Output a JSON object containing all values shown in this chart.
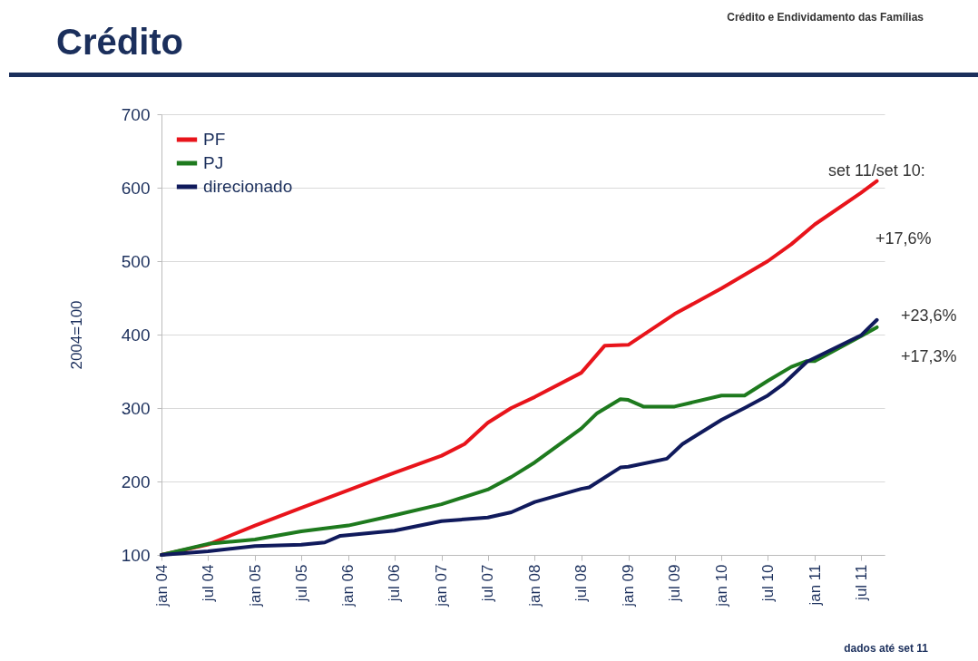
{
  "chart_data": {
    "type": "line",
    "title": "Crédito",
    "subtitle": "Crédito e Endividamento das Famílias",
    "ylabel": "2004=100",
    "series": [
      {
        "name": "PF",
        "color": "#e8141b",
        "x": [
          "2004-01",
          "2004-07",
          "2005-01",
          "2005-07",
          "2006-01",
          "2006-07",
          "2007-01",
          "2007-04",
          "2007-07",
          "2007-10",
          "2008-01",
          "2008-07",
          "2008-10",
          "2009-01",
          "2009-07",
          "2010-01",
          "2010-07",
          "2010-10",
          "2011-01",
          "2011-07",
          "2011-09"
        ],
        "values": [
          100,
          114,
          140,
          164,
          188,
          212,
          235,
          251,
          280,
          300,
          315,
          348,
          385,
          386,
          428,
          463,
          500,
          523,
          550,
          593,
          609
        ]
      },
      {
        "name": "PJ",
        "color": "#1e7a1e",
        "x": [
          "2004-01",
          "2004-07",
          "2005-01",
          "2005-07",
          "2006-01",
          "2006-07",
          "2007-01",
          "2007-07",
          "2007-10",
          "2008-01",
          "2008-07",
          "2008-09",
          "2008-12",
          "2009-01",
          "2009-03",
          "2009-07",
          "2010-01",
          "2010-04",
          "2010-07",
          "2010-10",
          "2010-12",
          "2011-01",
          "2011-07",
          "2011-09"
        ],
        "values": [
          100,
          115,
          121,
          132,
          140,
          154,
          169,
          189,
          206,
          226,
          272,
          293,
          312,
          311,
          302,
          302,
          317,
          317,
          337,
          356,
          364,
          364,
          398,
          410
        ]
      },
      {
        "name": "direcionado",
        "color": "#101a5c",
        "x": [
          "2004-01",
          "2004-07",
          "2005-01",
          "2005-07",
          "2005-10",
          "2005-12",
          "2006-07",
          "2007-01",
          "2007-07",
          "2007-10",
          "2008-01",
          "2008-07",
          "2008-08",
          "2008-12",
          "2009-01",
          "2009-06",
          "2009-08",
          "2010-01",
          "2010-04",
          "2010-07",
          "2010-09",
          "2010-12",
          "2011-07",
          "2011-09"
        ],
        "values": [
          100,
          105,
          112,
          114,
          117,
          126,
          133,
          146,
          151,
          158,
          172,
          190,
          192,
          219,
          220,
          231,
          251,
          284,
          300,
          317,
          333,
          363,
          399,
          420
        ]
      }
    ],
    "xlim": [
      "2004-01",
      "2011-10"
    ],
    "xticks": [
      {
        "value": "2004-01",
        "label": "jan 04"
      },
      {
        "value": "2004-07",
        "label": "jul 04"
      },
      {
        "value": "2005-01",
        "label": "jan 05"
      },
      {
        "value": "2005-07",
        "label": "jul 05"
      },
      {
        "value": "2006-01",
        "label": "jan 06"
      },
      {
        "value": "2006-07",
        "label": "jul 06"
      },
      {
        "value": "2007-01",
        "label": "jan 07"
      },
      {
        "value": "2007-07",
        "label": "jul 07"
      },
      {
        "value": "2008-01",
        "label": "jan 08"
      },
      {
        "value": "2008-07",
        "label": "jul 08"
      },
      {
        "value": "2009-01",
        "label": "jan 09"
      },
      {
        "value": "2009-07",
        "label": "jul 09"
      },
      {
        "value": "2010-01",
        "label": "jan 10"
      },
      {
        "value": "2010-07",
        "label": "jul 10"
      },
      {
        "value": "2011-01",
        "label": "jan 11"
      },
      {
        "value": "2011-07",
        "label": "jul 11"
      }
    ],
    "ylim": [
      100,
      700
    ],
    "yticks": [
      100,
      200,
      300,
      400,
      500,
      600,
      700
    ],
    "grid": "y",
    "legend": "top left",
    "annotations": [
      "set 11/set 10:",
      "+17,6%",
      "+23,6%",
      "+17,3%",
      "dados até set 11"
    ]
  }
}
